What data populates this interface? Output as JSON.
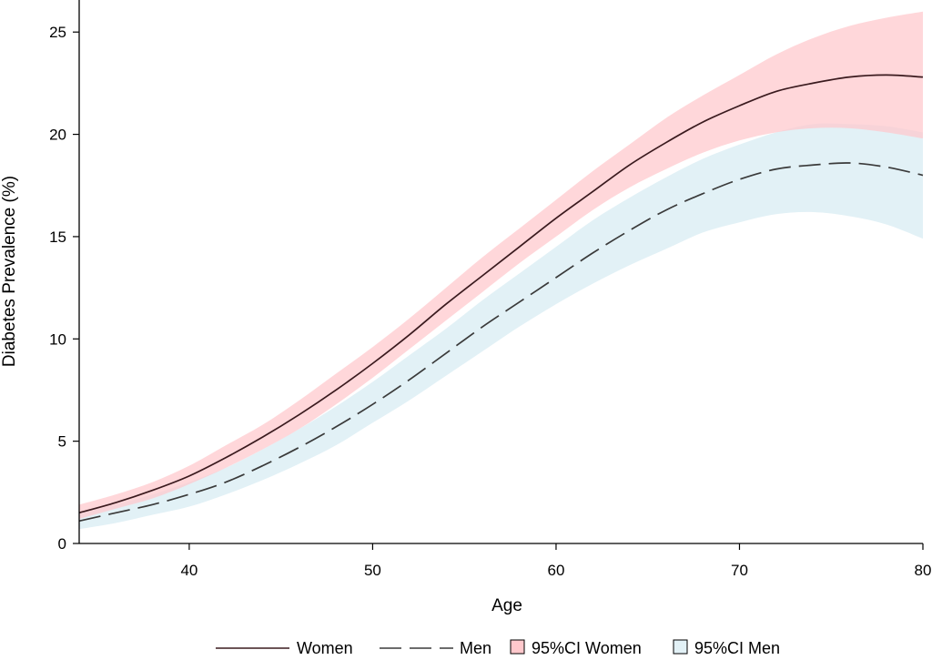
{
  "chart_data": {
    "type": "line",
    "xlabel": "Age",
    "ylabel": "Diabetes Prevalence (%)",
    "xlim": [
      34,
      80
    ],
    "ylim": [
      0,
      26
    ],
    "x_ticks": [
      40,
      50,
      60,
      70,
      80
    ],
    "y_ticks": [
      0,
      5,
      10,
      15,
      20,
      25
    ],
    "grid": false,
    "legend_position": "bottom",
    "x": [
      34,
      36,
      38,
      40,
      42,
      44,
      46,
      48,
      50,
      52,
      54,
      56,
      58,
      60,
      62,
      64,
      66,
      68,
      70,
      72,
      74,
      76,
      78,
      80
    ],
    "series": [
      {
        "name": "Women",
        "style": "solid",
        "color": "#3a1a1e",
        "values": [
          1.5,
          2.0,
          2.6,
          3.3,
          4.2,
          5.2,
          6.3,
          7.5,
          8.8,
          10.2,
          11.7,
          13.1,
          14.5,
          15.9,
          17.2,
          18.5,
          19.6,
          20.6,
          21.4,
          22.1,
          22.5,
          22.8,
          22.9,
          22.8
        ]
      },
      {
        "name": "Men",
        "style": "dashed",
        "color": "#3a3a3a",
        "values": [
          1.1,
          1.5,
          1.9,
          2.4,
          3.0,
          3.8,
          4.7,
          5.7,
          6.8,
          8.0,
          9.3,
          10.6,
          11.8,
          13.0,
          14.2,
          15.3,
          16.3,
          17.1,
          17.8,
          18.3,
          18.5,
          18.6,
          18.4,
          18.0
        ]
      }
    ],
    "bands": [
      {
        "name": "95%CI Women",
        "color": "#ffc8cc",
        "lower": [
          1.2,
          1.7,
          2.2,
          2.9,
          3.7,
          4.6,
          5.6,
          6.8,
          8.1,
          9.5,
          10.9,
          12.3,
          13.7,
          15.0,
          16.3,
          17.4,
          18.3,
          19.1,
          19.7,
          20.1,
          20.3,
          20.3,
          20.1,
          19.8
        ],
        "upper": [
          1.9,
          2.4,
          3.0,
          3.8,
          4.8,
          5.8,
          7.0,
          8.3,
          9.6,
          11.0,
          12.5,
          14.0,
          15.4,
          16.8,
          18.2,
          19.5,
          20.8,
          21.9,
          22.9,
          23.9,
          24.7,
          25.3,
          25.7,
          26.0
        ]
      },
      {
        "name": "95%CI Men",
        "color": "#e2f1f6",
        "lower": [
          0.7,
          1.0,
          1.4,
          1.8,
          2.4,
          3.1,
          3.9,
          4.8,
          5.9,
          7.0,
          8.2,
          9.4,
          10.6,
          11.7,
          12.7,
          13.6,
          14.4,
          15.2,
          15.7,
          16.1,
          16.2,
          16.0,
          15.6,
          14.9
        ],
        "upper": [
          1.5,
          1.9,
          2.4,
          3.0,
          3.7,
          4.6,
          5.6,
          6.7,
          7.9,
          9.2,
          10.5,
          11.9,
          13.2,
          14.5,
          15.8,
          16.9,
          17.9,
          18.8,
          19.5,
          20.1,
          20.5,
          20.5,
          20.4,
          20.1
        ]
      }
    ],
    "legend": [
      {
        "label": "Women",
        "kind": "line-solid"
      },
      {
        "label": "Men",
        "kind": "line-dashed"
      },
      {
        "label": "95%CI Women",
        "kind": "box-pink"
      },
      {
        "label": "95%CI Men",
        "kind": "box-blue"
      }
    ]
  }
}
